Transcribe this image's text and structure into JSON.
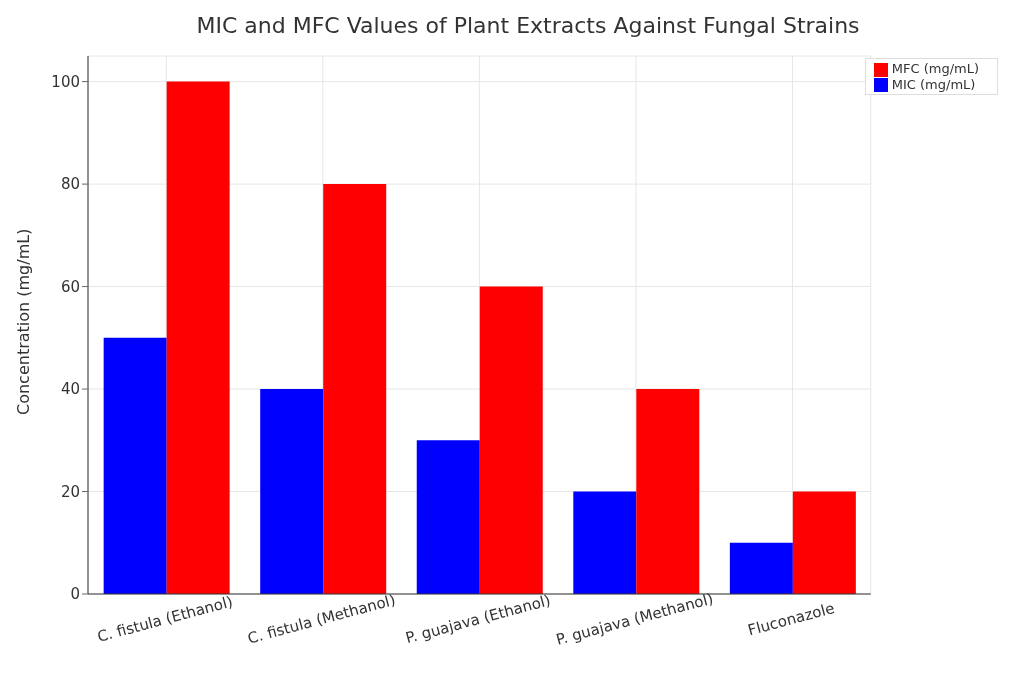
{
  "chart_data": {
    "type": "bar",
    "title": "MIC and MFC Values of Plant Extracts Against Fungal Strains",
    "ylabel": "Concentration (mg/mL)",
    "categories": [
      "C. fistula (Ethanol)",
      "C. fistula (Methanol)",
      "P. guajava (Ethanol)",
      "P. guajava (Methanol)",
      "Fluconazole"
    ],
    "series": [
      {
        "name": "MIC (mg/mL)",
        "color": "#0000ff",
        "values": [
          50,
          40,
          30,
          20,
          10
        ]
      },
      {
        "name": "MFC (mg/mL)",
        "color": "#ff0000",
        "values": [
          100,
          80,
          60,
          40,
          20
        ]
      }
    ],
    "ylim": [
      0,
      105
    ],
    "yticks": [
      0,
      20,
      40,
      60,
      80,
      100
    ],
    "grid": true,
    "legend": "top right"
  }
}
